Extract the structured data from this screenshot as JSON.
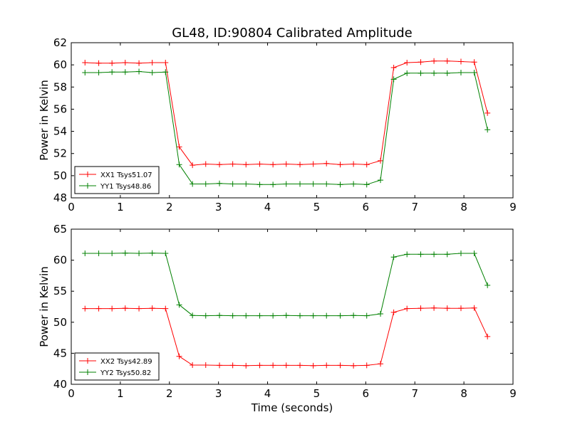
{
  "figure": {
    "title": "GL48, ID:90804 Calibrated Amplitude",
    "xlabel": "Time (seconds)"
  },
  "chart_data": [
    {
      "type": "line",
      "ylabel": "Power in Kelvin",
      "xlim": [
        0,
        9
      ],
      "ylim": [
        48,
        62
      ],
      "xticks": [
        0,
        1,
        2,
        3,
        4,
        5,
        6,
        7,
        8,
        9
      ],
      "yticks": [
        48,
        50,
        52,
        54,
        56,
        58,
        60,
        62
      ],
      "grid": false,
      "legend_position": "lower-left",
      "series": [
        {
          "name": "XX1 Tsys51.07",
          "color": "#ff0000",
          "marker": "plus",
          "x": [
            0.28,
            0.56,
            0.83,
            1.1,
            1.38,
            1.65,
            1.92,
            2.2,
            2.47,
            2.74,
            3.02,
            3.29,
            3.56,
            3.84,
            4.11,
            4.38,
            4.66,
            4.93,
            5.2,
            5.48,
            5.75,
            6.02,
            6.3,
            6.57,
            6.84,
            7.12,
            7.39,
            7.66,
            7.94,
            8.21,
            8.48
          ],
          "y": [
            60.2,
            60.15,
            60.15,
            60.2,
            60.15,
            60.2,
            60.2,
            52.6,
            50.95,
            51.05,
            51.0,
            51.05,
            51.0,
            51.05,
            51.0,
            51.05,
            51.0,
            51.05,
            51.1,
            51.0,
            51.05,
            51.0,
            51.35,
            59.75,
            60.2,
            60.25,
            60.35,
            60.35,
            60.3,
            60.25,
            55.65
          ]
        },
        {
          "name": "YY1 Tsys48.86",
          "color": "#008000",
          "marker": "plus",
          "x": [
            0.28,
            0.56,
            0.83,
            1.1,
            1.38,
            1.65,
            1.92,
            2.2,
            2.47,
            2.74,
            3.02,
            3.29,
            3.56,
            3.84,
            4.11,
            4.38,
            4.66,
            4.93,
            5.2,
            5.48,
            5.75,
            6.02,
            6.3,
            6.57,
            6.84,
            7.12,
            7.39,
            7.66,
            7.94,
            8.21,
            8.48
          ],
          "y": [
            59.3,
            59.3,
            59.35,
            59.35,
            59.4,
            59.3,
            59.35,
            51.0,
            49.25,
            49.25,
            49.3,
            49.25,
            49.25,
            49.2,
            49.2,
            49.25,
            49.25,
            49.25,
            49.25,
            49.2,
            49.25,
            49.2,
            49.6,
            58.7,
            59.25,
            59.25,
            59.25,
            59.25,
            59.3,
            59.3,
            54.15
          ]
        }
      ]
    },
    {
      "type": "line",
      "ylabel": "Power in Kelvin",
      "xlim": [
        0,
        9
      ],
      "ylim": [
        40,
        65
      ],
      "xticks": [
        0,
        1,
        2,
        3,
        4,
        5,
        6,
        7,
        8,
        9
      ],
      "yticks": [
        40,
        45,
        50,
        55,
        60,
        65
      ],
      "grid": false,
      "legend_position": "lower-left",
      "series": [
        {
          "name": "XX2 Tsys42.89",
          "color": "#ff0000",
          "marker": "plus",
          "x": [
            0.28,
            0.56,
            0.83,
            1.1,
            1.38,
            1.65,
            1.92,
            2.2,
            2.47,
            2.74,
            3.02,
            3.29,
            3.56,
            3.84,
            4.11,
            4.38,
            4.66,
            4.93,
            5.2,
            5.48,
            5.75,
            6.02,
            6.3,
            6.57,
            6.84,
            7.12,
            7.39,
            7.66,
            7.94,
            8.21,
            8.48
          ],
          "y": [
            52.2,
            52.2,
            52.2,
            52.25,
            52.2,
            52.25,
            52.2,
            44.5,
            43.1,
            43.1,
            43.05,
            43.05,
            43.0,
            43.05,
            43.05,
            43.05,
            43.05,
            43.0,
            43.05,
            43.05,
            43.0,
            43.05,
            43.3,
            51.6,
            52.2,
            52.25,
            52.3,
            52.25,
            52.25,
            52.3,
            47.7
          ]
        },
        {
          "name": "YY2 Tsys50.82",
          "color": "#008000",
          "marker": "plus",
          "x": [
            0.28,
            0.56,
            0.83,
            1.1,
            1.38,
            1.65,
            1.92,
            2.2,
            2.47,
            2.74,
            3.02,
            3.29,
            3.56,
            3.84,
            4.11,
            4.38,
            4.66,
            4.93,
            5.2,
            5.48,
            5.75,
            6.02,
            6.3,
            6.57,
            6.84,
            7.12,
            7.39,
            7.66,
            7.94,
            8.21,
            8.48
          ],
          "y": [
            61.1,
            61.1,
            61.1,
            61.15,
            61.1,
            61.15,
            61.1,
            52.8,
            51.1,
            51.05,
            51.1,
            51.05,
            51.05,
            51.05,
            51.05,
            51.1,
            51.05,
            51.05,
            51.05,
            51.05,
            51.1,
            51.05,
            51.35,
            60.5,
            60.95,
            60.95,
            60.95,
            60.95,
            61.1,
            61.1,
            55.95
          ]
        }
      ]
    }
  ]
}
